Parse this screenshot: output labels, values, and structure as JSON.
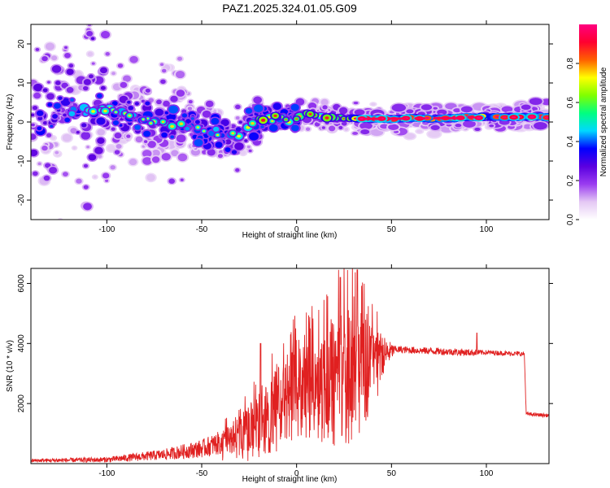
{
  "title": "PAZ1.2025.324.01.05.G09",
  "chart_data": [
    {
      "type": "heatmap",
      "name": "spectrogram",
      "xlabel": "Height of straight line (km)",
      "ylabel": "Frequency (Hz)",
      "xlim": [
        -140,
        133
      ],
      "ylim": [
        -25,
        25
      ],
      "xticks": [
        -100,
        -50,
        0,
        50,
        100
      ],
      "yticks": [
        -20,
        -10,
        0,
        10,
        20
      ],
      "colorbar": {
        "label": "Normalized spectral amplitude",
        "range": [
          0,
          1
        ],
        "ticks": [
          0.0,
          0.2,
          0.4,
          0.6,
          0.8
        ],
        "tick_labels": [
          "0.0",
          "0.2",
          "0.4",
          "0.6",
          "0.8"
        ],
        "colors": [
          "#ffffff",
          "#e4c8f4",
          "#9a3cf0",
          "#5a00e0",
          "#0000ff",
          "#00d8ff",
          "#00ff80",
          "#80ff00",
          "#ffff00",
          "#ff6000",
          "#ff0030",
          "#ff0080"
        ]
      },
      "ridge": [
        {
          "x": -130,
          "y": 2
        },
        {
          "x": -110,
          "y": 3
        },
        {
          "x": -100,
          "y": 3.5
        },
        {
          "x": -90,
          "y": 2
        },
        {
          "x": -80,
          "y": 1
        },
        {
          "x": -70,
          "y": -0.5
        },
        {
          "x": -60,
          "y": -1
        },
        {
          "x": -50,
          "y": -2
        },
        {
          "x": -40,
          "y": -3
        },
        {
          "x": -30,
          "y": -4
        },
        {
          "x": -25,
          "y": -1
        },
        {
          "x": -20,
          "y": 0.5
        },
        {
          "x": -10,
          "y": 1.5
        },
        {
          "x": 0,
          "y": 1
        },
        {
          "x": 5,
          "y": 2.5
        },
        {
          "x": 10,
          "y": 1.5
        },
        {
          "x": 20,
          "y": 1
        },
        {
          "x": 30,
          "y": 1
        },
        {
          "x": 40,
          "y": 0.8
        },
        {
          "x": 50,
          "y": 0.8
        },
        {
          "x": 60,
          "y": 1
        },
        {
          "x": 70,
          "y": 0.8
        },
        {
          "x": 80,
          "y": 1
        },
        {
          "x": 90,
          "y": 1.2
        },
        {
          "x": 100,
          "y": 1.3
        },
        {
          "x": 110,
          "y": 1.3
        },
        {
          "x": 120,
          "y": 1.3
        },
        {
          "x": 133,
          "y": 1.3
        }
      ]
    },
    {
      "type": "line",
      "name": "snr",
      "xlabel": "Height of straight line (km)",
      "ylabel": "SNR (10 * v/v)",
      "xlim": [
        -140,
        133
      ],
      "ylim": [
        0,
        6500
      ],
      "xticks": [
        -100,
        -50,
        0,
        50,
        100
      ],
      "yticks": [
        2000,
        4000,
        6000
      ],
      "color": "#e02020",
      "envelope": [
        {
          "x": -140,
          "mean": 100,
          "spread": 60
        },
        {
          "x": -100,
          "mean": 130,
          "spread": 90
        },
        {
          "x": -70,
          "mean": 300,
          "spread": 180
        },
        {
          "x": -50,
          "mean": 500,
          "spread": 300
        },
        {
          "x": -35,
          "mean": 800,
          "spread": 450
        },
        {
          "x": -25,
          "mean": 1200,
          "spread": 700
        },
        {
          "x": -15,
          "mean": 1800,
          "spread": 1000
        },
        {
          "x": -5,
          "mean": 2500,
          "spread": 1200
        },
        {
          "x": 5,
          "mean": 2700,
          "spread": 1300
        },
        {
          "x": 15,
          "mean": 3000,
          "spread": 1500
        },
        {
          "x": 25,
          "mean": 3300,
          "spread": 1800
        },
        {
          "x": 35,
          "mean": 3500,
          "spread": 1500
        },
        {
          "x": 45,
          "mean": 3600,
          "spread": 700
        },
        {
          "x": 52,
          "mean": 3800,
          "spread": 120
        },
        {
          "x": 90,
          "mean": 3700,
          "spread": 120
        },
        {
          "x": 100,
          "mean": 3700,
          "spread": 80
        },
        {
          "x": 120,
          "mean": 3650,
          "spread": 80
        },
        {
          "x": 121,
          "mean": 1650,
          "spread": 60
        },
        {
          "x": 133,
          "mean": 1600,
          "spread": 60
        }
      ],
      "peaks": [
        {
          "x": -19,
          "y": 4000
        },
        {
          "x": 23,
          "y": 6200
        },
        {
          "x": 32,
          "y": 6450
        },
        {
          "x": 95,
          "y": 4350
        }
      ]
    }
  ]
}
